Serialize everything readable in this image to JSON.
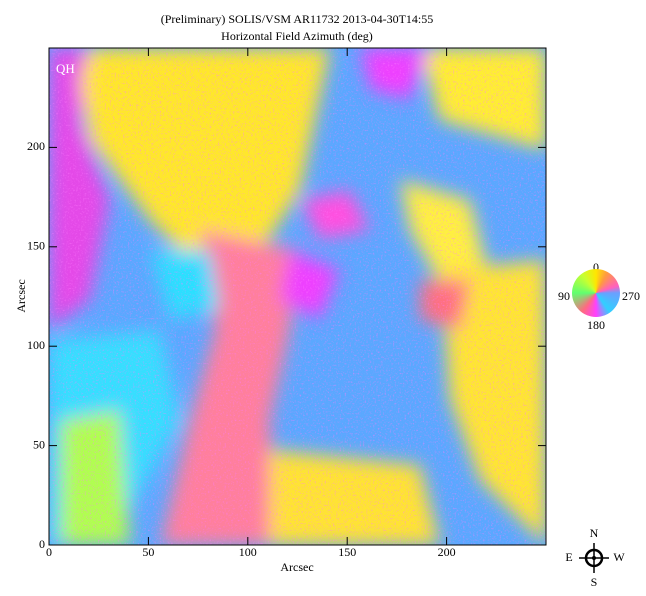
{
  "chart_data": {
    "type": "heatmap",
    "title": "(Preliminary) SOLIS/VSM AR11732 2013-04-30T14:55",
    "subtitle": "Horizontal Field Azimuth (deg)",
    "xlabel": "Arcsec",
    "ylabel": "Arcsec",
    "panel_label": "QH",
    "xlim": [
      0,
      250
    ],
    "ylim": [
      0,
      250
    ],
    "xticks": [
      0,
      50,
      100,
      150,
      200
    ],
    "yticks": [
      0,
      50,
      100,
      150,
      200
    ],
    "colorwheel_ticks": [
      0,
      90,
      180,
      270
    ]
  },
  "compass": {
    "north": "N",
    "south": "S",
    "east": "E",
    "west": "W"
  }
}
